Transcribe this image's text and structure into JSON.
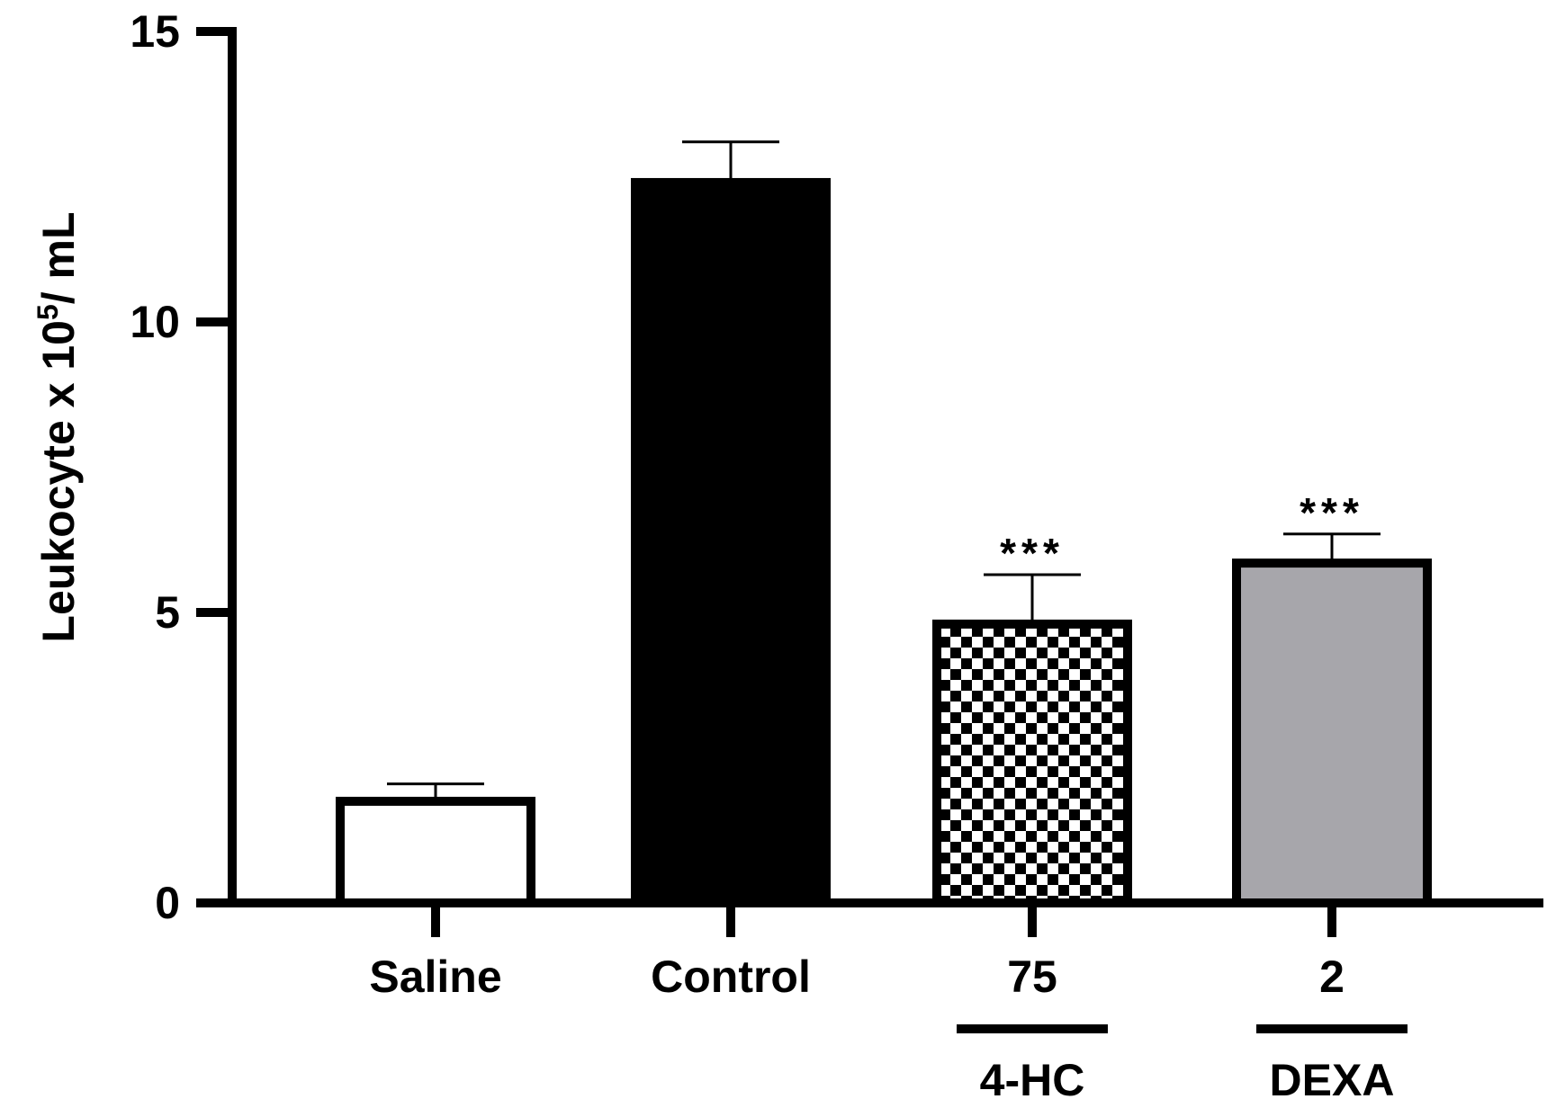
{
  "chart_data": {
    "type": "bar",
    "ylabel_main": "Leukocyte  x 10",
    "ylabel_sup": "5",
    "ylabel_unit": "/ mL",
    "ylim": [
      0,
      15
    ],
    "yticks": [
      "0",
      "5",
      "10",
      "15"
    ],
    "categories": [
      "Saline",
      "Control",
      "75",
      "2"
    ],
    "values": [
      1.75,
      12.4,
      4.8,
      5.85
    ],
    "errors": [
      0.3,
      0.7,
      0.85,
      0.5
    ],
    "significance": [
      "",
      "",
      "***",
      "***"
    ],
    "fills": [
      "#ffffff",
      "#000000",
      "checker",
      "#a7a6ab"
    ],
    "groups": [
      {
        "label": "4-HC",
        "category_index": 2
      },
      {
        "label": "DEXA",
        "category_index": 3
      }
    ],
    "grid": false
  }
}
